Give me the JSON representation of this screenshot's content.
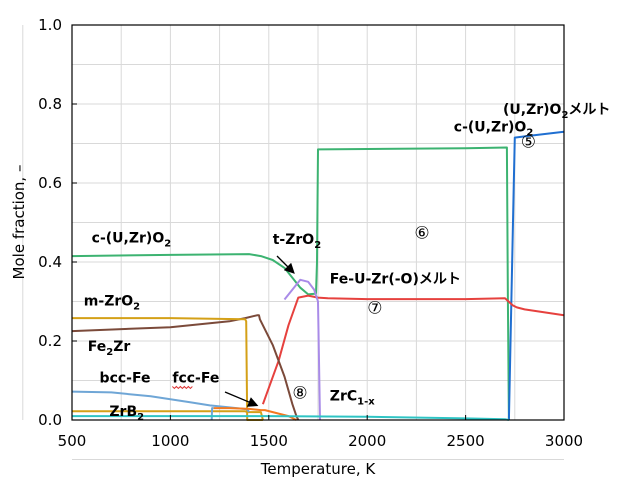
{
  "chart_data": {
    "type": "line",
    "title": "",
    "xlabel": "Temperature, K",
    "ylabel": "Mole fraction, –",
    "xlim": [
      500,
      3000
    ],
    "ylim": [
      0,
      1.0
    ],
    "xticks": [
      "500",
      "1000",
      "1500",
      "2000",
      "2500",
      "3000"
    ],
    "yticks": [
      "0.0",
      "0.2",
      "0.4",
      "0.6",
      "0.8",
      "1.0"
    ],
    "grid": true,
    "legend": "none",
    "series": [
      {
        "color": "#3cb371",
        "x": [
          500,
          1000,
          1400,
          1460,
          1520,
          1580,
          1620,
          1660,
          1700,
          1740,
          1745,
          1750,
          1760,
          2000,
          2500,
          2710,
          2715,
          2720
        ],
        "y": [
          0.415,
          0.418,
          0.42,
          0.415,
          0.405,
          0.385,
          0.36,
          0.335,
          0.318,
          0.32,
          0.4,
          0.685,
          0.685,
          0.686,
          0.688,
          0.69,
          0.3,
          0.0
        ]
      },
      {
        "color": "#1f6fd1",
        "x": [
          2720,
          2745,
          2750,
          2800,
          3000
        ],
        "y": [
          0.0,
          0.6,
          0.715,
          0.718,
          0.73
        ]
      },
      {
        "color": "#e6413e",
        "x": [
          1470,
          1550,
          1600,
          1650,
          1700,
          1750,
          1800,
          2000,
          2500,
          2700,
          2740,
          2760,
          2800,
          3000
        ],
        "y": [
          0.04,
          0.15,
          0.24,
          0.31,
          0.315,
          0.31,
          0.308,
          0.306,
          0.306,
          0.308,
          0.29,
          0.285,
          0.28,
          0.265
        ]
      },
      {
        "color": "#a98be8",
        "x": [
          1580,
          1620,
          1660,
          1700,
          1730,
          1750,
          1755,
          1760
        ],
        "y": [
          0.305,
          0.33,
          0.355,
          0.35,
          0.33,
          0.3,
          0.15,
          0.0
        ]
      },
      {
        "color": "#7b4a3a",
        "x": [
          500,
          1000,
          1300,
          1380,
          1440,
          1450,
          1455,
          1520,
          1580,
          1620,
          1640,
          1650
        ],
        "y": [
          0.225,
          0.235,
          0.25,
          0.258,
          0.265,
          0.265,
          0.255,
          0.19,
          0.11,
          0.04,
          0.01,
          0.0
        ]
      },
      {
        "color": "#d4a017",
        "x": [
          500,
          1000,
          1380,
          1385,
          1390,
          1460,
          1465,
          1470
        ],
        "y": [
          0.258,
          0.258,
          0.255,
          0.25,
          0.0,
          0.0,
          0.0,
          0.0
        ]
      },
      {
        "color": "#d4a017",
        "x": [
          500,
          1000,
          1300,
          1380,
          1390,
          1460,
          1470
        ],
        "y": [
          0.022,
          0.022,
          0.022,
          0.022,
          0.02,
          0.02,
          0.0
        ]
      },
      {
        "color": "#6fa6d6",
        "x": [
          500,
          700,
          900,
          1100,
          1200,
          1300,
          1390,
          1400
        ],
        "y": [
          0.072,
          0.07,
          0.06,
          0.045,
          0.037,
          0.032,
          0.027,
          0.02
        ]
      },
      {
        "color": "#6fa6d6",
        "x": [
          1210,
          1212,
          1220
        ],
        "y": [
          0.0,
          0.03,
          0.03
        ]
      },
      {
        "color": "#f47920",
        "x": [
          1220,
          1300,
          1400,
          1460,
          1480,
          1600,
          1640
        ],
        "y": [
          0.03,
          0.03,
          0.028,
          0.025,
          0.025,
          0.01,
          0.0
        ]
      },
      {
        "color": "#2ec4c4",
        "x": [
          500,
          1000,
          1500,
          2000,
          2500,
          2700,
          2720
        ],
        "y": [
          0.01,
          0.01,
          0.01,
          0.008,
          0.004,
          0.002,
          0.0
        ]
      }
    ],
    "annotations": [
      {
        "main": "(U,Zr)O",
        "sub": "2",
        "rest": "メルト",
        "x": 2690,
        "y": 0.775
      },
      {
        "main": "⑤",
        "x": 2780,
        "y": 0.69
      },
      {
        "main": "c-(U,Zr)O",
        "sub": "2",
        "rest": "",
        "x": 2440,
        "y": 0.73
      },
      {
        "main": "c-(U,Zr)O",
        "sub": "2",
        "rest": "",
        "x": 600,
        "y": 0.45
      },
      {
        "main": "⑥",
        "x": 2240,
        "y": 0.46
      },
      {
        "main": "t-ZrO",
        "sub": "2",
        "rest": "",
        "x": 1520,
        "y": 0.445
      },
      {
        "main": "Fe-U-Zr(-O)メルト",
        "x": 1810,
        "y": 0.345
      },
      {
        "main": "⑦",
        "x": 2000,
        "y": 0.27
      },
      {
        "main": "m-ZrO",
        "sub": "2",
        "rest": "",
        "x": 560,
        "y": 0.29
      },
      {
        "main": "Fe",
        "sub": "2",
        "rest": "Zr",
        "x": 580,
        "y": 0.175
      },
      {
        "main": "bcc-Fe",
        "x": 640,
        "y": 0.095
      },
      {
        "main": "fcc-Fe",
        "x": 1010,
        "y": 0.095
      },
      {
        "main": "⑧",
        "x": 1620,
        "y": 0.055
      },
      {
        "main": "ZrC",
        "sub": "1-x",
        "rest": "",
        "x": 1810,
        "y": 0.05
      },
      {
        "main": "ZrB",
        "sub": "2",
        "rest": "",
        "x": 690,
        "y": 0.01
      }
    ]
  }
}
